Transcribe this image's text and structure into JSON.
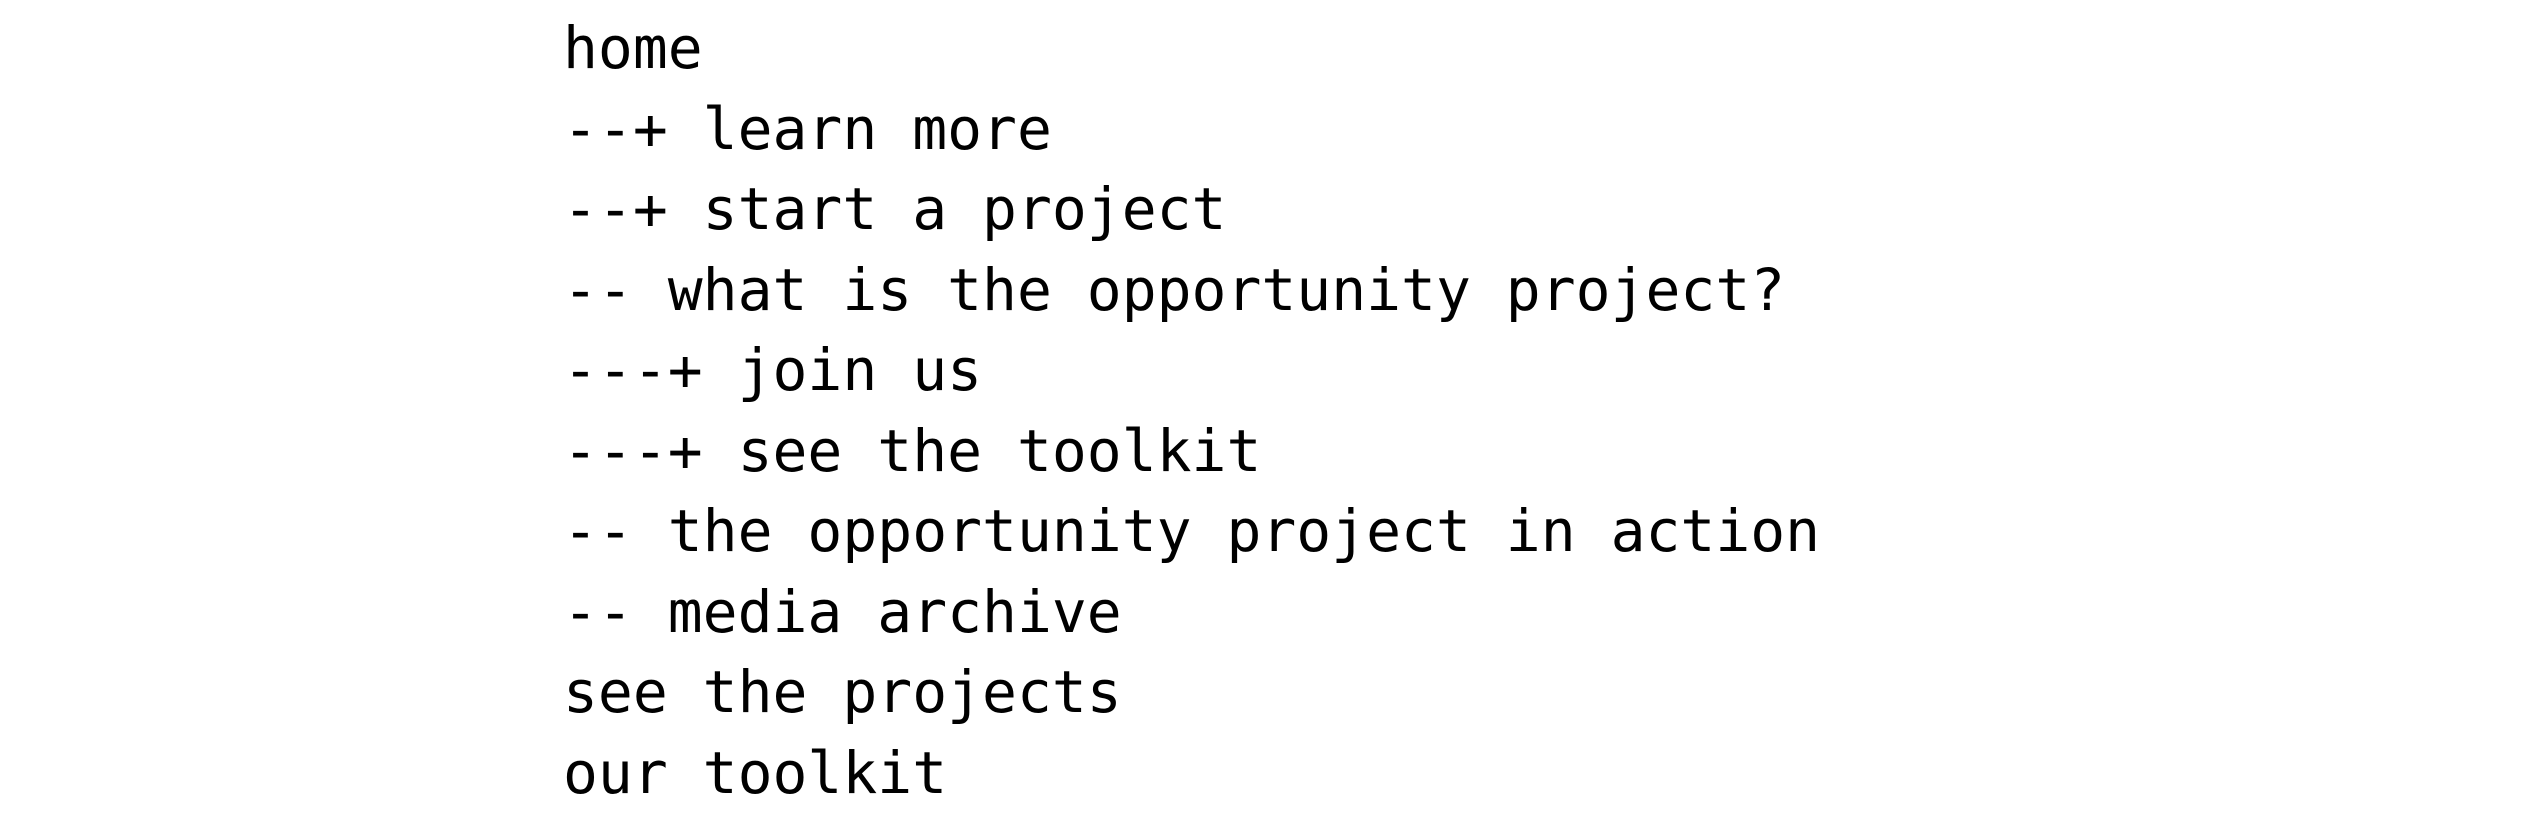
{
  "sitemap": {
    "items": [
      "home",
      "--+ learn more",
      "--+ start a project",
      "-- what is the opportunity project?",
      "---+ join us",
      "---+ see the toolkit",
      "-- the opportunity project in action",
      "-- media archive",
      "see the projects",
      "our toolkit"
    ]
  }
}
